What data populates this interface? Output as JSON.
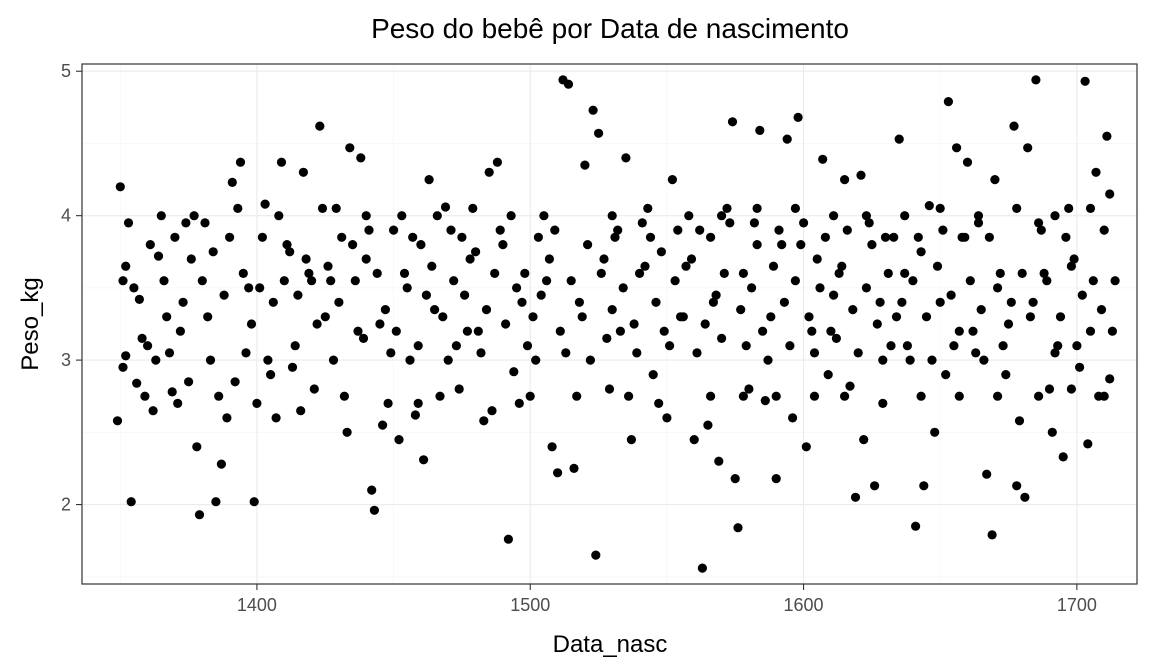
{
  "chart_data": {
    "type": "scatter",
    "title": "Peso do bebê por Data de nascimento",
    "xlabel": "Data_nasc",
    "ylabel": "Peso_kg",
    "xlim": [
      1336,
      1722
    ],
    "ylim": [
      1.45,
      5.05
    ],
    "x_ticks": [
      1400,
      1500,
      1600,
      1700
    ],
    "x_tick_labels": [
      "1400",
      "1500",
      "1600",
      "1700"
    ],
    "y_ticks": [
      2,
      3,
      4,
      5
    ],
    "y_tick_labels": [
      "2",
      "3",
      "4",
      "5"
    ],
    "grid": true,
    "point_color": "#000000",
    "points": [
      [
        1350,
        4.2
      ],
      [
        1349,
        2.58
      ],
      [
        1352,
        3.03
      ],
      [
        1354,
        2.02
      ],
      [
        1356,
        2.84
      ],
      [
        1351,
        3.55
      ],
      [
        1353,
        3.95
      ],
      [
        1357,
        3.42
      ],
      [
        1360,
        3.1
      ],
      [
        1362,
        2.65
      ],
      [
        1364,
        3.72
      ],
      [
        1367,
        3.3
      ],
      [
        1370,
        3.85
      ],
      [
        1373,
        3.4
      ],
      [
        1376,
        3.7
      ],
      [
        1378,
        2.4
      ],
      [
        1379,
        1.93
      ],
      [
        1381,
        3.95
      ],
      [
        1383,
        3.0
      ],
      [
        1385,
        2.02
      ],
      [
        1387,
        2.28
      ],
      [
        1389,
        2.6
      ],
      [
        1391,
        4.23
      ],
      [
        1394,
        4.37
      ],
      [
        1396,
        3.05
      ],
      [
        1399,
        2.02
      ],
      [
        1401,
        3.5
      ],
      [
        1403,
        4.08
      ],
      [
        1405,
        2.9
      ],
      [
        1407,
        2.6
      ],
      [
        1409,
        4.37
      ],
      [
        1411,
        3.8
      ],
      [
        1413,
        2.95
      ],
      [
        1415,
        3.45
      ],
      [
        1417,
        4.3
      ],
      [
        1419,
        3.6
      ],
      [
        1421,
        2.8
      ],
      [
        1423,
        4.62
      ],
      [
        1425,
        3.3
      ],
      [
        1427,
        3.55
      ],
      [
        1429,
        4.05
      ],
      [
        1431,
        3.85
      ],
      [
        1433,
        2.5
      ],
      [
        1434,
        4.47
      ],
      [
        1437,
        3.2
      ],
      [
        1438,
        4.4
      ],
      [
        1440,
        3.7
      ],
      [
        1442,
        2.1
      ],
      [
        1443,
        1.96
      ],
      [
        1445,
        3.25
      ],
      [
        1448,
        2.7
      ],
      [
        1450,
        3.9
      ],
      [
        1452,
        2.45
      ],
      [
        1454,
        3.6
      ],
      [
        1456,
        3.0
      ],
      [
        1458,
        2.62
      ],
      [
        1460,
        3.8
      ],
      [
        1461,
        2.31
      ],
      [
        1463,
        4.25
      ],
      [
        1465,
        3.35
      ],
      [
        1467,
        2.75
      ],
      [
        1469,
        4.06
      ],
      [
        1471,
        3.9
      ],
      [
        1473,
        3.1
      ],
      [
        1476,
        3.45
      ],
      [
        1478,
        3.7
      ],
      [
        1481,
        3.2
      ],
      [
        1483,
        2.58
      ],
      [
        1485,
        4.3
      ],
      [
        1488,
        4.37
      ],
      [
        1490,
        3.8
      ],
      [
        1492,
        1.76
      ],
      [
        1494,
        2.92
      ],
      [
        1496,
        2.7
      ],
      [
        1498,
        3.6
      ],
      [
        1501,
        3.3
      ],
      [
        1503,
        3.85
      ],
      [
        1506,
        3.55
      ],
      [
        1508,
        2.4
      ],
      [
        1510,
        2.22
      ],
      [
        1512,
        4.94
      ],
      [
        1514,
        4.91
      ],
      [
        1516,
        2.25
      ],
      [
        1518,
        3.4
      ],
      [
        1520,
        4.35
      ],
      [
        1522,
        3.0
      ],
      [
        1523,
        4.73
      ],
      [
        1524,
        1.65
      ],
      [
        1525,
        4.57
      ],
      [
        1527,
        3.7
      ],
      [
        1529,
        2.8
      ],
      [
        1531,
        3.85
      ],
      [
        1533,
        3.2
      ],
      [
        1535,
        4.4
      ],
      [
        1537,
        2.45
      ],
      [
        1540,
        3.6
      ],
      [
        1543,
        4.05
      ],
      [
        1545,
        2.9
      ],
      [
        1548,
        3.75
      ],
      [
        1550,
        2.6
      ],
      [
        1552,
        4.25
      ],
      [
        1555,
        3.3
      ],
      [
        1557,
        3.65
      ],
      [
        1560,
        2.45
      ],
      [
        1562,
        3.9
      ],
      [
        1563,
        1.56
      ],
      [
        1565,
        2.55
      ],
      [
        1567,
        3.4
      ],
      [
        1569,
        2.3
      ],
      [
        1572,
        4.05
      ],
      [
        1574,
        4.65
      ],
      [
        1575,
        2.18
      ],
      [
        1576,
        1.84
      ],
      [
        1578,
        3.6
      ],
      [
        1580,
        2.8
      ],
      [
        1582,
        3.95
      ],
      [
        1584,
        4.59
      ],
      [
        1586,
        2.72
      ],
      [
        1588,
        3.3
      ],
      [
        1590,
        2.18
      ],
      [
        1592,
        3.8
      ],
      [
        1594,
        4.53
      ],
      [
        1596,
        2.6
      ],
      [
        1598,
        4.68
      ],
      [
        1600,
        3.95
      ],
      [
        1601,
        2.4
      ],
      [
        1603,
        3.2
      ],
      [
        1605,
        3.7
      ],
      [
        1607,
        4.39
      ],
      [
        1609,
        2.9
      ],
      [
        1611,
        3.45
      ],
      [
        1613,
        3.6
      ],
      [
        1615,
        4.25
      ],
      [
        1617,
        2.82
      ],
      [
        1619,
        2.05
      ],
      [
        1621,
        4.28
      ],
      [
        1622,
        2.45
      ],
      [
        1624,
        3.95
      ],
      [
        1626,
        2.13
      ],
      [
        1628,
        3.4
      ],
      [
        1630,
        3.85
      ],
      [
        1632,
        3.1
      ],
      [
        1634,
        3.3
      ],
      [
        1635,
        4.53
      ],
      [
        1637,
        3.6
      ],
      [
        1639,
        3.0
      ],
      [
        1641,
        1.85
      ],
      [
        1643,
        3.75
      ],
      [
        1644,
        2.13
      ],
      [
        1646,
        4.07
      ],
      [
        1648,
        2.5
      ],
      [
        1650,
        3.4
      ],
      [
        1652,
        2.9
      ],
      [
        1653,
        4.79
      ],
      [
        1656,
        4.47
      ],
      [
        1658,
        3.85
      ],
      [
        1660,
        4.37
      ],
      [
        1662,
        3.2
      ],
      [
        1664,
        3.95
      ],
      [
        1666,
        3.0
      ],
      [
        1667,
        2.21
      ],
      [
        1669,
        1.79
      ],
      [
        1670,
        4.25
      ],
      [
        1672,
        3.6
      ],
      [
        1674,
        2.9
      ],
      [
        1676,
        3.4
      ],
      [
        1677,
        4.62
      ],
      [
        1678,
        2.13
      ],
      [
        1679,
        2.58
      ],
      [
        1681,
        2.05
      ],
      [
        1682,
        4.47
      ],
      [
        1683,
        3.3
      ],
      [
        1685,
        4.94
      ],
      [
        1686,
        3.95
      ],
      [
        1688,
        3.6
      ],
      [
        1690,
        2.8
      ],
      [
        1691,
        2.5
      ],
      [
        1693,
        3.1
      ],
      [
        1695,
        2.33
      ],
      [
        1697,
        4.05
      ],
      [
        1699,
        3.7
      ],
      [
        1701,
        2.95
      ],
      [
        1703,
        4.93
      ],
      [
        1704,
        2.42
      ],
      [
        1705,
        3.2
      ],
      [
        1707,
        4.3
      ],
      [
        1708,
        2.75
      ],
      [
        1710,
        3.9
      ],
      [
        1711,
        4.55
      ],
      [
        1712,
        2.87
      ],
      [
        1713,
        3.2
      ],
      [
        1712,
        4.15
      ],
      [
        1352,
        3.65
      ],
      [
        1358,
        3.15
      ],
      [
        1363,
        3.0
      ],
      [
        1366,
        3.55
      ],
      [
        1369,
        2.78
      ],
      [
        1372,
        3.2
      ],
      [
        1375,
        2.85
      ],
      [
        1380,
        3.55
      ],
      [
        1384,
        3.75
      ],
      [
        1388,
        3.45
      ],
      [
        1392,
        2.85
      ],
      [
        1395,
        3.6
      ],
      [
        1398,
        3.25
      ],
      [
        1402,
        3.85
      ],
      [
        1406,
        3.4
      ],
      [
        1410,
        3.55
      ],
      [
        1414,
        3.1
      ],
      [
        1418,
        3.7
      ],
      [
        1422,
        3.25
      ],
      [
        1426,
        3.65
      ],
      [
        1430,
        3.4
      ],
      [
        1435,
        3.8
      ],
      [
        1439,
        3.15
      ],
      [
        1444,
        3.6
      ],
      [
        1447,
        3.35
      ],
      [
        1451,
        3.2
      ],
      [
        1455,
        3.5
      ],
      [
        1459,
        3.1
      ],
      [
        1464,
        3.65
      ],
      [
        1468,
        3.3
      ],
      [
        1472,
        3.55
      ],
      [
        1477,
        3.2
      ],
      [
        1480,
        3.75
      ],
      [
        1484,
        3.35
      ],
      [
        1487,
        3.6
      ],
      [
        1491,
        3.25
      ],
      [
        1495,
        3.5
      ],
      [
        1499,
        3.1
      ],
      [
        1504,
        3.45
      ],
      [
        1507,
        3.7
      ],
      [
        1511,
        3.2
      ],
      [
        1515,
        3.55
      ],
      [
        1519,
        3.3
      ],
      [
        1526,
        3.6
      ],
      [
        1530,
        3.35
      ],
      [
        1534,
        3.5
      ],
      [
        1538,
        3.25
      ],
      [
        1542,
        3.65
      ],
      [
        1546,
        3.4
      ],
      [
        1549,
        3.2
      ],
      [
        1553,
        3.55
      ],
      [
        1556,
        3.3
      ],
      [
        1559,
        3.7
      ],
      [
        1564,
        3.25
      ],
      [
        1568,
        3.45
      ],
      [
        1571,
        3.6
      ],
      [
        1577,
        3.35
      ],
      [
        1581,
        3.5
      ],
      [
        1585,
        3.2
      ],
      [
        1589,
        3.65
      ],
      [
        1593,
        3.4
      ],
      [
        1597,
        3.55
      ],
      [
        1602,
        3.3
      ],
      [
        1606,
        3.5
      ],
      [
        1610,
        3.2
      ],
      [
        1614,
        3.65
      ],
      [
        1618,
        3.35
      ],
      [
        1623,
        3.5
      ],
      [
        1627,
        3.25
      ],
      [
        1631,
        3.6
      ],
      [
        1636,
        3.4
      ],
      [
        1640,
        3.55
      ],
      [
        1645,
        3.3
      ],
      [
        1649,
        3.65
      ],
      [
        1654,
        3.45
      ],
      [
        1657,
        3.2
      ],
      [
        1661,
        3.55
      ],
      [
        1665,
        3.35
      ],
      [
        1671,
        3.5
      ],
      [
        1675,
        3.25
      ],
      [
        1680,
        3.6
      ],
      [
        1684,
        3.4
      ],
      [
        1689,
        3.55
      ],
      [
        1694,
        3.3
      ],
      [
        1698,
        3.65
      ],
      [
        1702,
        3.45
      ],
      [
        1706,
        3.55
      ],
      [
        1709,
        3.35
      ],
      [
        1355,
        3.5
      ],
      [
        1361,
        3.8
      ],
      [
        1368,
        3.05
      ],
      [
        1374,
        3.95
      ],
      [
        1382,
        3.3
      ],
      [
        1390,
        3.85
      ],
      [
        1397,
        3.5
      ],
      [
        1404,
        3.0
      ],
      [
        1412,
        3.75
      ],
      [
        1420,
        3.55
      ],
      [
        1428,
        3.0
      ],
      [
        1436,
        3.55
      ],
      [
        1441,
        3.9
      ],
      [
        1449,
        3.05
      ],
      [
        1457,
        3.85
      ],
      [
        1462,
        3.45
      ],
      [
        1470,
        3.0
      ],
      [
        1475,
        3.85
      ],
      [
        1482,
        3.05
      ],
      [
        1489,
        3.9
      ],
      [
        1497,
        3.4
      ],
      [
        1502,
        3.0
      ],
      [
        1509,
        3.9
      ],
      [
        1513,
        3.05
      ],
      [
        1521,
        3.8
      ],
      [
        1528,
        3.15
      ],
      [
        1532,
        3.9
      ],
      [
        1539,
        3.05
      ],
      [
        1544,
        3.85
      ],
      [
        1551,
        3.1
      ],
      [
        1554,
        3.9
      ],
      [
        1561,
        3.05
      ],
      [
        1566,
        3.85
      ],
      [
        1570,
        3.15
      ],
      [
        1573,
        3.95
      ],
      [
        1579,
        3.1
      ],
      [
        1583,
        3.8
      ],
      [
        1587,
        3.0
      ],
      [
        1591,
        3.9
      ],
      [
        1595,
        3.1
      ],
      [
        1599,
        3.8
      ],
      [
        1604,
        3.05
      ],
      [
        1608,
        3.85
      ],
      [
        1612,
        3.15
      ],
      [
        1616,
        3.9
      ],
      [
        1620,
        3.05
      ],
      [
        1625,
        3.8
      ],
      [
        1629,
        3.0
      ],
      [
        1633,
        3.85
      ],
      [
        1638,
        3.1
      ],
      [
        1642,
        3.85
      ],
      [
        1647,
        3.0
      ],
      [
        1651,
        3.9
      ],
      [
        1655,
        3.1
      ],
      [
        1659,
        3.85
      ],
      [
        1663,
        3.05
      ],
      [
        1668,
        3.85
      ],
      [
        1673,
        3.1
      ],
      [
        1687,
        3.9
      ],
      [
        1692,
        3.05
      ],
      [
        1696,
        3.85
      ],
      [
        1700,
        3.1
      ],
      [
        1714,
        3.55
      ],
      [
        1351,
        2.95
      ],
      [
        1359,
        2.75
      ],
      [
        1365,
        4.0
      ],
      [
        1371,
        2.7
      ],
      [
        1377,
        4.0
      ],
      [
        1386,
        2.75
      ],
      [
        1393,
        4.05
      ],
      [
        1400,
        2.7
      ],
      [
        1408,
        4.0
      ],
      [
        1416,
        2.65
      ],
      [
        1424,
        4.05
      ],
      [
        1432,
        2.75
      ],
      [
        1440,
        4.0
      ],
      [
        1446,
        2.55
      ],
      [
        1453,
        4.0
      ],
      [
        1459,
        2.7
      ],
      [
        1466,
        4.0
      ],
      [
        1474,
        2.8
      ],
      [
        1479,
        4.05
      ],
      [
        1486,
        2.65
      ],
      [
        1493,
        4.0
      ],
      [
        1500,
        2.75
      ],
      [
        1505,
        4.0
      ],
      [
        1517,
        2.75
      ],
      [
        1530,
        4.0
      ],
      [
        1536,
        2.75
      ],
      [
        1541,
        3.95
      ],
      [
        1547,
        2.7
      ],
      [
        1558,
        4.0
      ],
      [
        1566,
        2.75
      ],
      [
        1570,
        4.0
      ],
      [
        1578,
        2.75
      ],
      [
        1583,
        4.05
      ],
      [
        1590,
        2.75
      ],
      [
        1597,
        4.05
      ],
      [
        1604,
        2.75
      ],
      [
        1611,
        4.0
      ],
      [
        1615,
        2.75
      ],
      [
        1623,
        4.0
      ],
      [
        1629,
        2.7
      ],
      [
        1637,
        4.0
      ],
      [
        1643,
        2.75
      ],
      [
        1650,
        4.05
      ],
      [
        1657,
        2.75
      ],
      [
        1664,
        4.0
      ],
      [
        1671,
        2.75
      ],
      [
        1678,
        4.05
      ],
      [
        1686,
        2.75
      ],
      [
        1692,
        4.0
      ],
      [
        1698,
        2.8
      ],
      [
        1705,
        4.05
      ],
      [
        1710,
        2.75
      ]
    ]
  }
}
